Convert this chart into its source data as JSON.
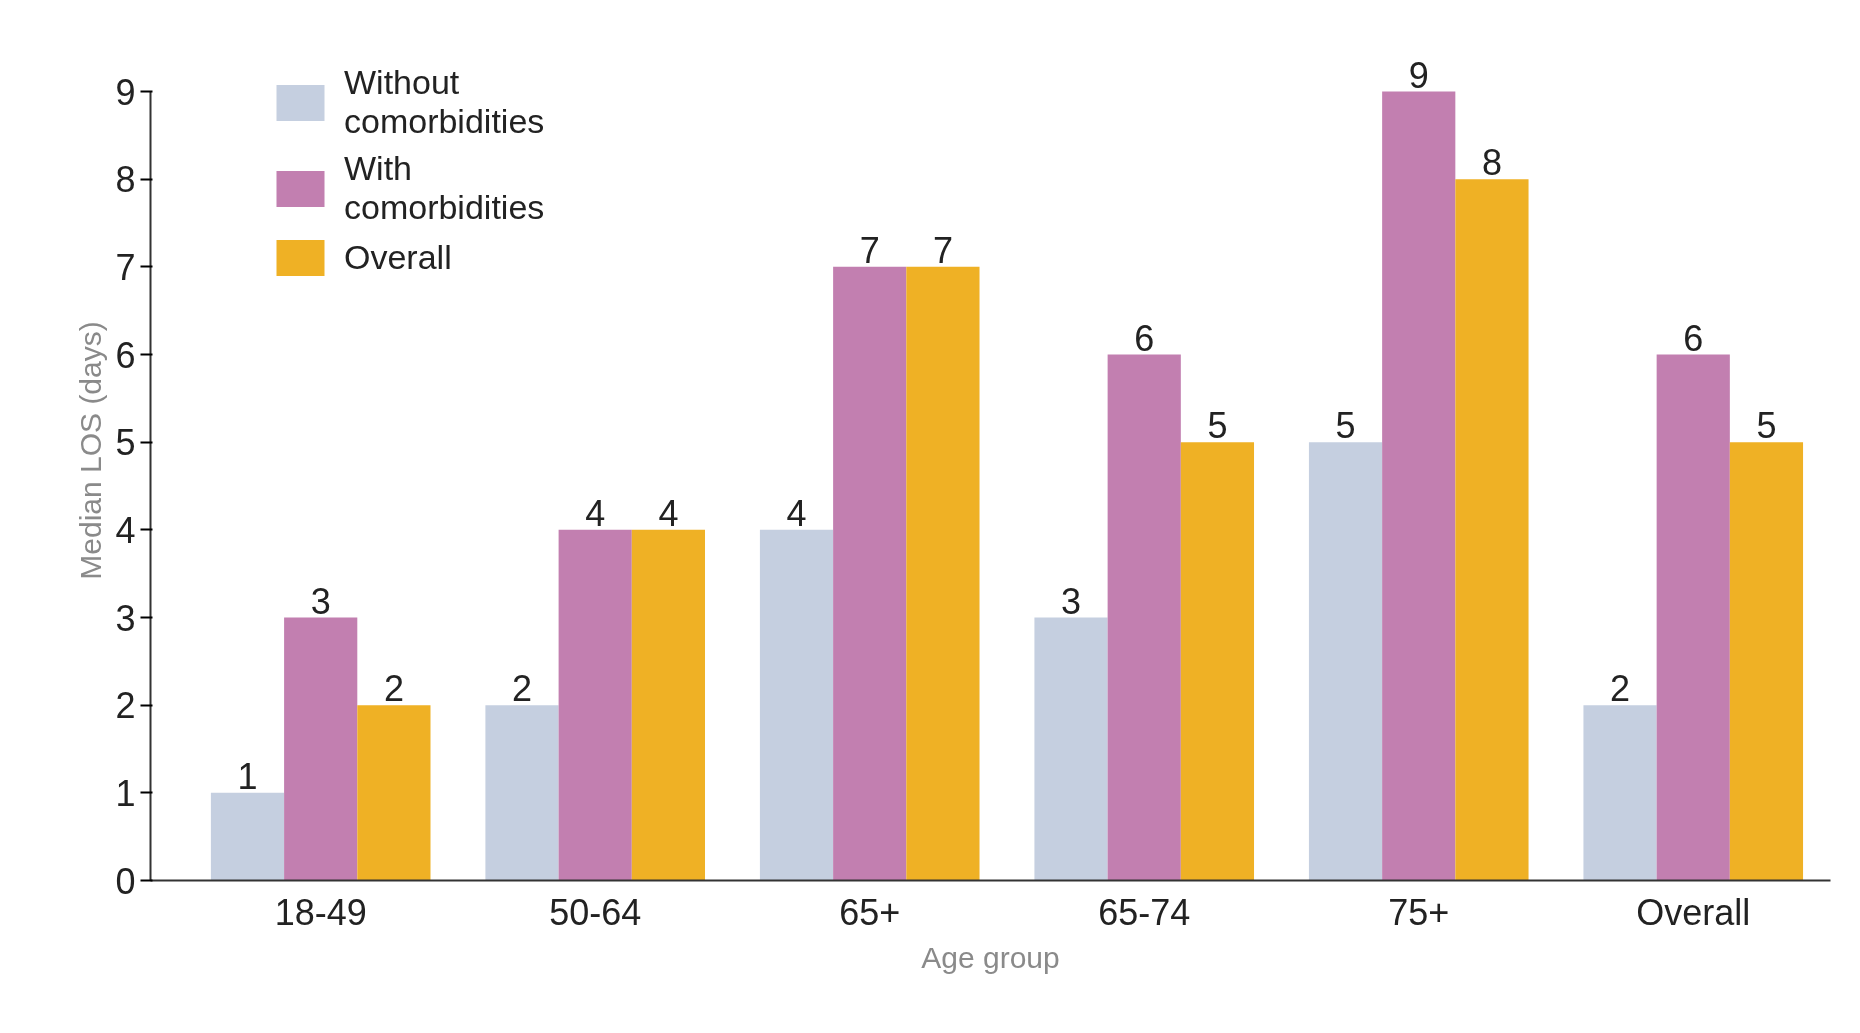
{
  "chart_data": {
    "type": "bar",
    "xlabel": "Age group",
    "ylabel": "Median LOS (days)",
    "categories": [
      "18-49",
      "50-64",
      "65+",
      "65-74",
      "75+",
      "Overall"
    ],
    "series": [
      {
        "name": "Without comorbidities",
        "color": "#c5cfe0",
        "values": [
          1,
          2,
          4,
          3,
          5,
          2
        ]
      },
      {
        "name": "With comorbidities",
        "color": "#c27fb0",
        "values": [
          3,
          4,
          7,
          6,
          9,
          6
        ]
      },
      {
        "name": "Overall",
        "color": "#efb125",
        "values": [
          2,
          4,
          7,
          5,
          8,
          5
        ]
      }
    ],
    "ylim": [
      0,
      9
    ],
    "yticks": [
      0,
      1,
      2,
      3,
      4,
      5,
      6,
      7,
      8,
      9
    ],
    "grid": false,
    "legend": "top left",
    "data_labels": true
  }
}
